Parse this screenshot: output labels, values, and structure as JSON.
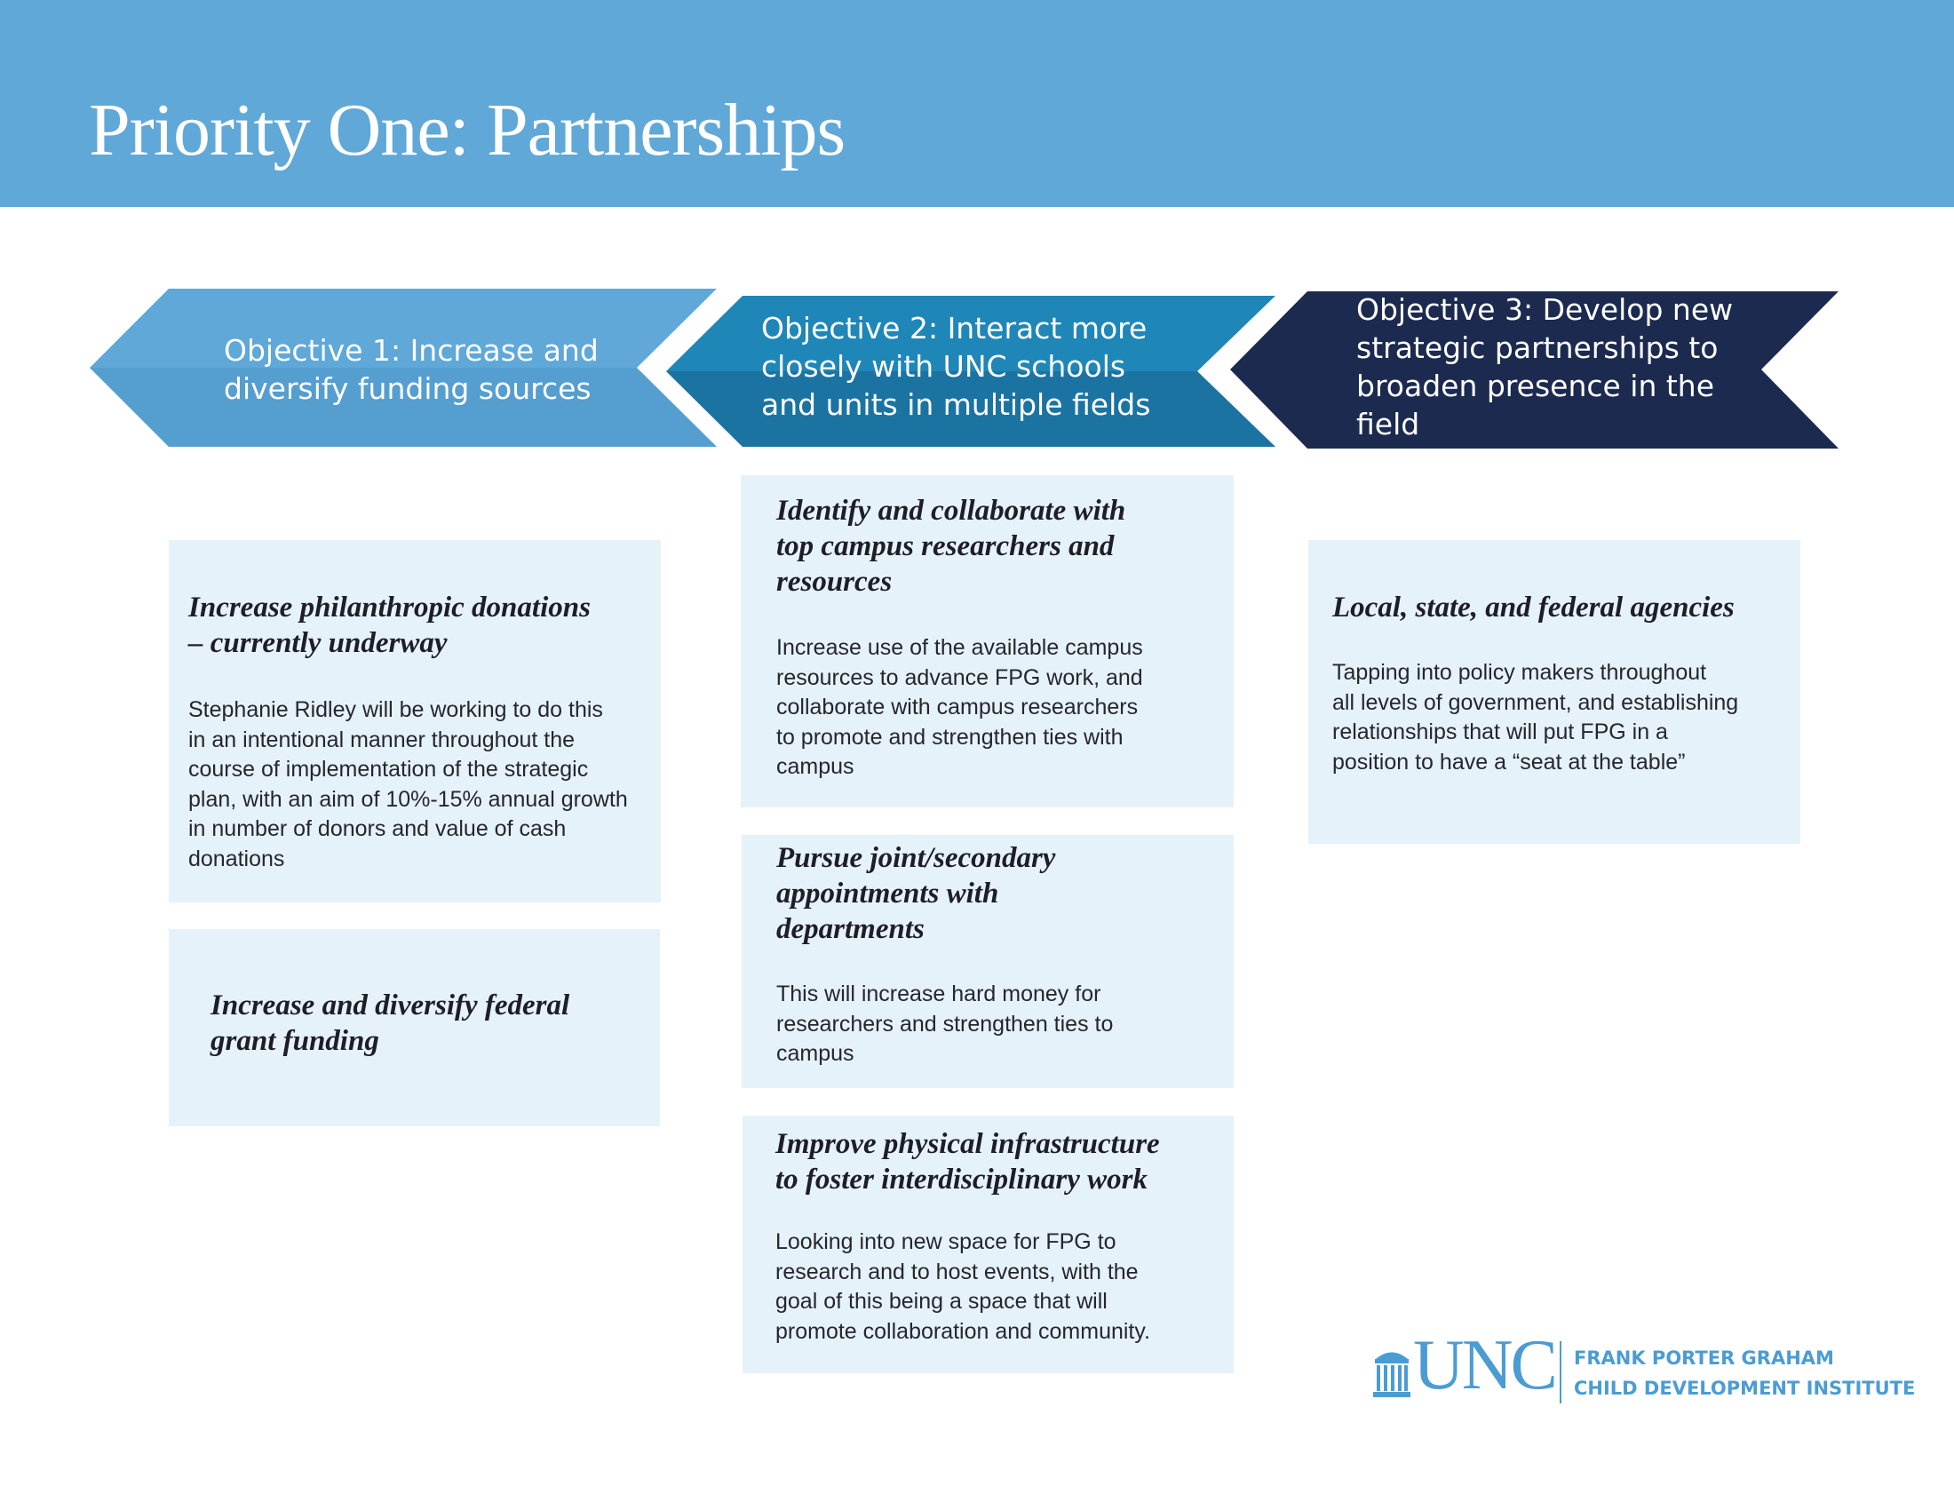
{
  "header": {
    "title": "Priority One: Partnerships",
    "band_color": "#5fa8d8"
  },
  "objectives": [
    {
      "line1": "Objective 1: Increase and",
      "line2": "diversify funding sources",
      "color": "#5fa8d8"
    },
    {
      "line1": "Objective 2: Interact more",
      "line2": "closely with UNC schools",
      "line3": "and units in multiple fields",
      "color": "#1f86b8"
    },
    {
      "line1": "Objective 3: Develop new",
      "line2": "strategic partnerships to",
      "line3": "broaden presence in the",
      "line4": "field",
      "color": "#1b2a4e"
    }
  ],
  "cards": {
    "obj1": [
      {
        "heading_lines": [
          "Increase philanthropic donations",
          "– currently underway"
        ],
        "body_lines": [
          "Stephanie Ridley will be working to do this",
          "in an intentional manner throughout the",
          "course of implementation of the strategic",
          "plan, with an aim of 10%-15% annual growth",
          "in number of donors and value of cash",
          "donations"
        ]
      },
      {
        "heading_lines": [
          "Increase and diversify federal",
          "grant funding"
        ],
        "body_lines": []
      }
    ],
    "obj2": [
      {
        "heading_lines": [
          "Identify and collaborate with",
          "top campus researchers and",
          "resources"
        ],
        "body_lines": [
          "Increase use of the available campus",
          "resources to advance FPG work, and",
          "collaborate with campus researchers",
          "to promote and strengthen ties with",
          "campus"
        ]
      },
      {
        "heading_lines": [
          "Pursue joint/secondary",
          "appointments with",
          "departments"
        ],
        "body_lines": [
          "This will increase hard money for",
          "researchers and strengthen ties to",
          "campus"
        ]
      },
      {
        "heading_lines": [
          "Improve physical infrastructure",
          "to foster interdisciplinary work"
        ],
        "body_lines": [
          "Looking into new space for FPG to",
          "research and to host events, with the",
          "goal of this being a space that will",
          "promote collaboration and community."
        ]
      }
    ],
    "obj3": [
      {
        "heading_lines": [
          "Local, state, and federal agencies"
        ],
        "body_lines": [
          "Tapping into policy makers throughout",
          "all levels of government, and establishing",
          "relationships that will put FPG in a",
          "position to have a “seat at the table”"
        ]
      }
    ]
  },
  "logo": {
    "mark_icon": "old-well-icon",
    "wordmark": "UNC",
    "institute_line1": "FRANK PORTER GRAHAM",
    "institute_line2": "CHILD DEVELOPMENT INSTITUTE",
    "color": "#4b9cd3"
  }
}
